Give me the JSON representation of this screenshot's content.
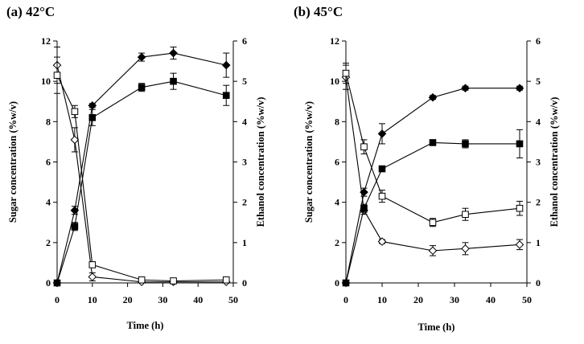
{
  "chart_data": [
    {
      "type": "line",
      "title": "(a) 42°C",
      "xlabel": "Time (h)",
      "ylabel": "Sugar concentration (%w/v)",
      "ylabel2": "Ethanol concentration (%w/v)",
      "xlim": [
        0,
        50
      ],
      "ylim": [
        0,
        12
      ],
      "ylim2": [
        0,
        6
      ],
      "xticks": [
        "0",
        "10",
        "20",
        "30",
        "40",
        "50"
      ],
      "yticks": [
        "0",
        "2",
        "4",
        "6",
        "8",
        "10",
        "12"
      ],
      "yticks2": [
        "0",
        "1",
        "2",
        "3",
        "4",
        "5",
        "6"
      ],
      "series": [
        {
          "name": "Sugar (open diamond)",
          "marker": "diamond-open",
          "axis": "left",
          "x": [
            0,
            5,
            10,
            24,
            33,
            48
          ],
          "values": [
            10.8,
            7.1,
            0.3,
            0.05,
            0.05,
            0.05
          ],
          "err": [
            0.9,
            0.6,
            0.2,
            0.05,
            0.05,
            0.05
          ]
        },
        {
          "name": "Sugar (open square)",
          "marker": "square-open",
          "axis": "left",
          "x": [
            0,
            5,
            10,
            24,
            33,
            48
          ],
          "values": [
            10.3,
            8.5,
            0.9,
            0.15,
            0.1,
            0.15
          ],
          "err": [
            0.9,
            0.3,
            0.1,
            0.05,
            0.05,
            0.05
          ]
        },
        {
          "name": "Ethanol (filled diamond)",
          "marker": "diamond-filled",
          "axis": "right",
          "x": [
            0,
            5,
            10,
            24,
            33,
            48
          ],
          "values": [
            0,
            1.8,
            4.4,
            5.6,
            5.7,
            5.4
          ],
          "err": [
            0,
            0.1,
            0.05,
            0.1,
            0.15,
            0.3
          ]
        },
        {
          "name": "Ethanol (filled square)",
          "marker": "square-filled",
          "axis": "right",
          "x": [
            0,
            5,
            10,
            24,
            33,
            48
          ],
          "values": [
            0,
            1.4,
            4.1,
            4.85,
            5.0,
            4.65
          ],
          "err": [
            0,
            0.1,
            0.2,
            0.1,
            0.2,
            0.25
          ]
        }
      ]
    },
    {
      "type": "line",
      "title": "(b) 45°C",
      "xlabel": "Time (h)",
      "ylabel": "Sugar concentration (%w/v)",
      "ylabel2": "Ethanol concentration (%w/v)",
      "xlim": [
        0,
        50
      ],
      "ylim": [
        0,
        12
      ],
      "ylim2": [
        0,
        6
      ],
      "xticks": [
        "0",
        "10",
        "20",
        "30",
        "40",
        "50"
      ],
      "yticks": [
        "0",
        "2",
        "4",
        "6",
        "8",
        "10",
        "12"
      ],
      "yticks2": [
        "0",
        "1",
        "2",
        "3",
        "4",
        "5",
        "6"
      ],
      "series": [
        {
          "name": "Sugar (open diamond)",
          "marker": "diamond-open",
          "axis": "left",
          "x": [
            0,
            5,
            10,
            24,
            33,
            48
          ],
          "values": [
            10.2,
            3.6,
            2.05,
            1.6,
            1.7,
            1.9
          ],
          "err": [
            0.6,
            0.2,
            0.1,
            0.25,
            0.3,
            0.25
          ]
        },
        {
          "name": "Sugar (open square)",
          "marker": "square-open",
          "axis": "left",
          "x": [
            0,
            5,
            10,
            24,
            33,
            48
          ],
          "values": [
            10.4,
            6.75,
            4.3,
            3.0,
            3.4,
            3.7
          ],
          "err": [
            0.5,
            0.35,
            0.3,
            0.2,
            0.3,
            0.35
          ]
        },
        {
          "name": "Ethanol (filled diamond)",
          "marker": "diamond-filled",
          "axis": "right",
          "x": [
            0,
            5,
            10,
            24,
            33,
            48
          ],
          "values": [
            0,
            2.25,
            3.7,
            4.6,
            4.83,
            4.83
          ],
          "err": [
            0,
            0.1,
            0.25,
            0.05,
            0.05,
            0.05
          ]
        },
        {
          "name": "Ethanol (filled square)",
          "marker": "square-filled",
          "axis": "right",
          "x": [
            0,
            5,
            10,
            24,
            33,
            48
          ],
          "values": [
            0,
            1.85,
            2.83,
            3.48,
            3.45,
            3.45
          ],
          "err": [
            0,
            0.1,
            0.05,
            0.05,
            0.1,
            0.35
          ]
        }
      ]
    }
  ]
}
